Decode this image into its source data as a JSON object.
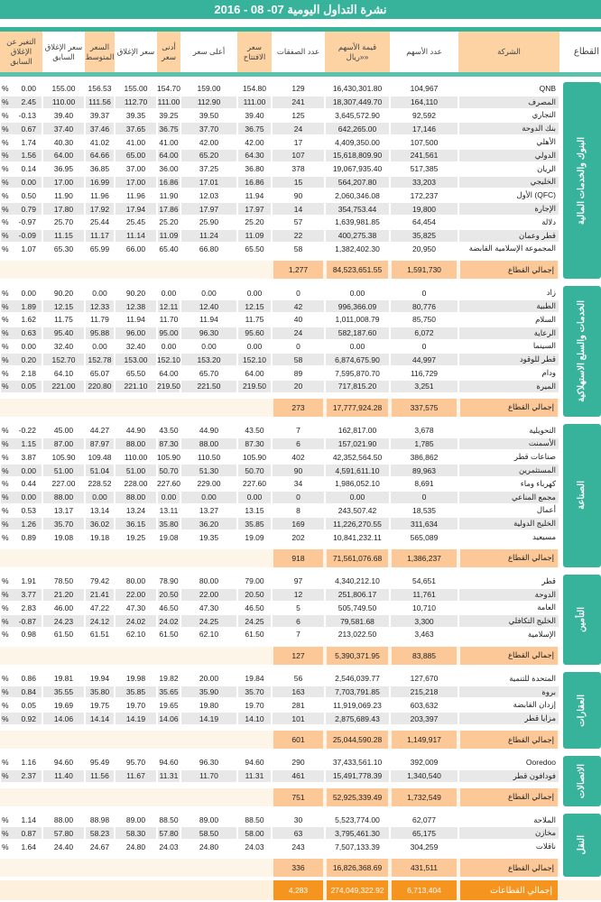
{
  "title": "نشرة التداول اليومية 07- 08 - 2016",
  "colors": {
    "green": "#36b39a",
    "orange_header": "#fdd3a4",
    "total": "#fcc898",
    "grand_total": "#f5951f"
  },
  "headers": {
    "change": "التغير عن الإغلاق السابق",
    "prev_close": "سعر الإغلاق السابق",
    "avg": "السعر المتوسط",
    "close": "سعر الإغلاق",
    "low": "أدنى سعر",
    "high": "أعلى سعر",
    "open": "سعر الافتتاح",
    "deals": "عدد الصفقات",
    "value": "قيمة الأسهم «ريال»",
    "shares": "عدد الأسهم",
    "company": "الشركة",
    "sector": "القطاع"
  },
  "percent_sign": "%",
  "total_label": "إجمالي القطاع",
  "row_fields": [
    "company",
    "shares",
    "value",
    "deals",
    "open",
    "high",
    "low",
    "close",
    "avg",
    "prev_close",
    "change"
  ],
  "sectors": [
    {
      "name": "البنوك والخدمات المالية",
      "rows": [
        [
          "QNB",
          "104,967",
          "16,430,301.80",
          "129",
          "154.80",
          "159.00",
          "154.70",
          "155.00",
          "156.53",
          "155.00",
          "0.00"
        ],
        [
          "المصرف",
          "164,110",
          "18,307,449.70",
          "241",
          "111.00",
          "112.90",
          "111.00",
          "112.70",
          "111.56",
          "110.00",
          "2.45"
        ],
        [
          "التجاري",
          "92,592",
          "3,645,572.90",
          "125",
          "39.40",
          "39.50",
          "39.25",
          "39.35",
          "39.37",
          "39.40",
          "-0.13"
        ],
        [
          "بنك الدوحة",
          "17,146",
          "642,265.00",
          "24",
          "36.75",
          "37.70",
          "36.75",
          "37.65",
          "37.46",
          "37.40",
          "0.67"
        ],
        [
          "الأهلي",
          "107,500",
          "4,409,350.00",
          "17",
          "42.00",
          "42.00",
          "41.00",
          "41.00",
          "41.02",
          "40.30",
          "1.74"
        ],
        [
          "الدولي",
          "241,561",
          "15,618,809.90",
          "107",
          "64.30",
          "65.20",
          "64.00",
          "65.00",
          "64.66",
          "64.00",
          "1.56"
        ],
        [
          "الريان",
          "517,385",
          "19,067,935.40",
          "378",
          "36.80",
          "37.25",
          "36.00",
          "37.00",
          "36.85",
          "36.95",
          "0.14"
        ],
        [
          "الخليجي",
          "33,203",
          "564,207.80",
          "15",
          "16.86",
          "17.01",
          "16.86",
          "17.00",
          "16.99",
          "17.00",
          "0.00"
        ],
        [
          "الأول (QFC)",
          "172,237",
          "2,060,346.08",
          "90",
          "11.94",
          "12.03",
          "11.90",
          "11.96",
          "11.96",
          "11.90",
          "0.50"
        ],
        [
          "الإجارة",
          "19,800",
          "354,753.44",
          "14",
          "17.97",
          "17.97",
          "17.86",
          "17.94",
          "17.92",
          "17.80",
          "0.79"
        ],
        [
          "دلالة",
          "64,454",
          "1,639,981.85",
          "57",
          "25.20",
          "25.90",
          "25.20",
          "25.45",
          "25.44",
          "25.70",
          "-0.97"
        ],
        [
          "قطر وعمان",
          "35,825",
          "400,275.38",
          "22",
          "11.09",
          "11.24",
          "11.09",
          "11.14",
          "11.17",
          "11.15",
          "-0.09"
        ],
        [
          "المجموعة الإسلامية القابضة",
          "20,950",
          "1,382,402.30",
          "58",
          "65.50",
          "66.80",
          "65.40",
          "66.00",
          "65.99",
          "65.30",
          "1.07"
        ]
      ],
      "total": {
        "deals": "1,277",
        "value": "84,523,651.55",
        "shares": "1,591,730"
      }
    },
    {
      "name": "الخدمات والسلع الاستهلاكية",
      "rows": [
        [
          "زاد",
          "0",
          "0.00",
          "0",
          "0.00",
          "0.00",
          "0.00",
          "90.20",
          "0.00",
          "90.20",
          "0.00"
        ],
        [
          "الطبية",
          "80,776",
          "996,366.09",
          "42",
          "12.15",
          "12.40",
          "12.11",
          "12.38",
          "12.33",
          "12.15",
          "1.89"
        ],
        [
          "السلام",
          "85,750",
          "1,011,008.79",
          "40",
          "11.75",
          "11.94",
          "11.70",
          "11.94",
          "11.79",
          "11.75",
          "1.62"
        ],
        [
          "الرعاية",
          "6,072",
          "582,187.60",
          "24",
          "95.60",
          "96.30",
          "95.00",
          "96.00",
          "95.88",
          "95.40",
          "0.63"
        ],
        [
          "السينما",
          "0",
          "0.00",
          "0",
          "0.00",
          "0.00",
          "0.00",
          "32.40",
          "0.00",
          "32.40",
          "0.00"
        ],
        [
          "قطر للوقود",
          "44,997",
          "6,874,675.90",
          "58",
          "152.10",
          "153.20",
          "152.10",
          "153.00",
          "152.78",
          "152.70",
          "0.20"
        ],
        [
          "ودام",
          "116,729",
          "7,595,870.70",
          "89",
          "64.00",
          "65.70",
          "64.00",
          "65.50",
          "65.07",
          "64.10",
          "2.18"
        ],
        [
          "الميرة",
          "3,251",
          "717,815.20",
          "20",
          "219.50",
          "221.50",
          "219.50",
          "221.10",
          "220.80",
          "221.00",
          "0.05"
        ]
      ],
      "total": {
        "deals": "273",
        "value": "17,777,924.28",
        "shares": "337,575"
      }
    },
    {
      "name": "الصناعة",
      "rows": [
        [
          "التحويلية",
          "3,678",
          "162,817.00",
          "7",
          "43.50",
          "44.90",
          "43.50",
          "44.90",
          "44.27",
          "45.00",
          "-0.22"
        ],
        [
          "الأسمنت",
          "1,785",
          "157,021.90",
          "6",
          "87.30",
          "88.00",
          "87.30",
          "88.00",
          "87.97",
          "87.00",
          "1.15"
        ],
        [
          "صناعات قطر",
          "386,862",
          "42,352,564.50",
          "402",
          "105.90",
          "110.50",
          "105.90",
          "110.00",
          "109.48",
          "105.90",
          "3.87"
        ],
        [
          "المستثمرين",
          "89,963",
          "4,591,611.10",
          "90",
          "50.70",
          "51.30",
          "50.70",
          "51.00",
          "51.04",
          "51.00",
          "0.00"
        ],
        [
          "كهرباء وماء",
          "8,691",
          "1,986,052.10",
          "34",
          "227.60",
          "229.00",
          "227.60",
          "228.00",
          "228.52",
          "227.00",
          "0.44"
        ],
        [
          "مجمع المناعي",
          "0",
          "0.00",
          "0",
          "0.00",
          "0.00",
          "0.00",
          "88.00",
          "0.00",
          "88.00",
          "0.00"
        ],
        [
          "أعمال",
          "18,535",
          "243,507.42",
          "8",
          "13.15",
          "13.27",
          "13.11",
          "13.24",
          "13.14",
          "13.17",
          "0.53"
        ],
        [
          "الخليج الدولية",
          "311,634",
          "11,226,270.55",
          "169",
          "35.85",
          "36.20",
          "35.80",
          "36.15",
          "36.02",
          "35.70",
          "1.26"
        ],
        [
          "مسيعيد",
          "565,089",
          "10,841,232.11",
          "202",
          "19.09",
          "19.35",
          "19.08",
          "19.25",
          "19.18",
          "19.08",
          "0.89"
        ]
      ],
      "total": {
        "deals": "918",
        "value": "71,561,076.68",
        "shares": "1,386,237"
      }
    },
    {
      "name": "التأمين",
      "rows": [
        [
          "قطر",
          "54,651",
          "4,340,212.10",
          "97",
          "79.00",
          "80.00",
          "78.90",
          "80.00",
          "79.42",
          "78.50",
          "1.91"
        ],
        [
          "الدوحة",
          "11,761",
          "251,806.17",
          "12",
          "20.50",
          "22.00",
          "20.50",
          "22.00",
          "21.41",
          "21.20",
          "3.77"
        ],
        [
          "العامة",
          "10,710",
          "505,749.50",
          "5",
          "46.50",
          "47.30",
          "46.50",
          "47.30",
          "47.22",
          "46.00",
          "2.83"
        ],
        [
          "الخليج التكافلي",
          "3,300",
          "79,581.68",
          "6",
          "24.25",
          "24.25",
          "24.02",
          "24.02",
          "24.12",
          "24.23",
          "-0.87"
        ],
        [
          "الإسلامية",
          "3,463",
          "213,022.50",
          "7",
          "61.50",
          "62.10",
          "61.50",
          "62.10",
          "61.51",
          "61.50",
          "0.98"
        ]
      ],
      "total": {
        "deals": "127",
        "value": "5,390,371.95",
        "shares": "83,885"
      }
    },
    {
      "name": "العقارات",
      "rows": [
        [
          "المتحدة للتنمية",
          "127,670",
          "2,546,039.77",
          "56",
          "19.84",
          "20.00",
          "19.82",
          "19.98",
          "19.94",
          "19.81",
          "0.86"
        ],
        [
          "بروة",
          "215,218",
          "7,703,791.85",
          "163",
          "35.70",
          "35.90",
          "35.65",
          "35.85",
          "35.80",
          "35.55",
          "0.84"
        ],
        [
          "إزدان القابضة",
          "603,632",
          "11,919,069.23",
          "281",
          "19.70",
          "19.80",
          "19.65",
          "19.70",
          "19.75",
          "19.69",
          "0.05"
        ],
        [
          "مزايا قطر",
          "203,397",
          "2,875,689.43",
          "101",
          "14.10",
          "14.19",
          "14.06",
          "14.19",
          "14.14",
          "14.06",
          "0.92"
        ]
      ],
      "total": {
        "deals": "601",
        "value": "25,044,590.28",
        "shares": "1,149,917"
      }
    },
    {
      "name": "الاتصالات",
      "rows": [
        [
          "Ooredoo",
          "392,009",
          "37,433,561.10",
          "290",
          "94.60",
          "96.30",
          "94.60",
          "95.70",
          "95.49",
          "94.60",
          "1.16"
        ],
        [
          "فودافون قطر",
          "1,340,540",
          "15,491,778.39",
          "461",
          "11.31",
          "11.70",
          "11.31",
          "11.67",
          "11.56",
          "11.40",
          "2.37"
        ]
      ],
      "total": {
        "deals": "751",
        "value": "52,925,339.49",
        "shares": "1,732,549"
      }
    },
    {
      "name": "النقل",
      "rows": [
        [
          "الملاحة",
          "62,077",
          "5,523,774.00",
          "30",
          "88.50",
          "89.00",
          "88.50",
          "89.00",
          "88.98",
          "88.00",
          "1.14"
        ],
        [
          "مخازن",
          "65,175",
          "3,795,461.30",
          "63",
          "58.00",
          "58.50",
          "57.80",
          "58.30",
          "58.23",
          "57.80",
          "0.87"
        ],
        [
          "ناقلات",
          "304,259",
          "7,507,133.39",
          "243",
          "24.03",
          "24.80",
          "24.03",
          "24.80",
          "24.67",
          "24.40",
          "1.64"
        ]
      ],
      "total": {
        "deals": "336",
        "value": "16,826,368.69",
        "shares": "431,511"
      }
    }
  ],
  "grand_total": {
    "label": "إجمالي القطاعات",
    "deals": "4,283",
    "value": "274,049,322.92",
    "shares": "6,713,404"
  }
}
